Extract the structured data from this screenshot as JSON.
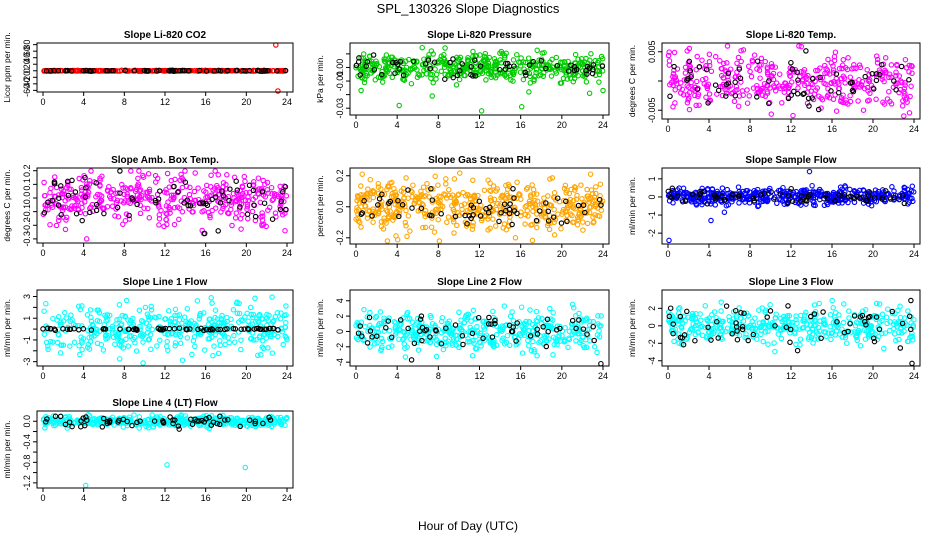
{
  "figure": {
    "title": "SPL_130326  Slope Diagnostics",
    "xlabel": "Hour of Day (UTC)"
  },
  "chart_data": [
    {
      "type": "scatter",
      "title": "Slope Li-820 CO2",
      "ylabel": "Licor ppm per min.",
      "xlim": [
        0,
        24
      ],
      "ylim": [
        -65,
        85
      ],
      "xticks": [
        0,
        4,
        8,
        12,
        16,
        20,
        24
      ],
      "yticks": [
        -60,
        -40,
        -20,
        0,
        20,
        40,
        60,
        80
      ],
      "ytick_labels": [
        "-60",
        "-40",
        "-20",
        "0",
        "20",
        "40",
        "60",
        "80"
      ],
      "series": [
        {
          "color": "#ff0000",
          "center": 0,
          "spread": 0.6,
          "count": 300,
          "outliers": [
            [
              22.9,
              79
            ],
            [
              23.1,
              -62
            ]
          ]
        },
        {
          "color": "#000000",
          "center": 0,
          "spread": 0.6,
          "count": 60,
          "outliers": []
        }
      ]
    },
    {
      "type": "scatter",
      "title": "Slope Li-820 Pressure",
      "ylabel": "kPa per min.",
      "xlim": [
        0,
        24
      ],
      "ylim": [
        -0.035,
        0.018
      ],
      "xticks": [
        0,
        4,
        8,
        12,
        16,
        20,
        24
      ],
      "yticks": [
        -0.03,
        -0.02,
        -0.01,
        0.0,
        0.01
      ],
      "ytick_labels": [
        "-0.03",
        "",
        "-0.01",
        "0.00",
        ""
      ],
      "series": [
        {
          "color": "#00cc00",
          "center": 0,
          "spread": 0.005,
          "count": 450,
          "outliers": [
            [
              0.5,
              -0.017
            ],
            [
              4.2,
              -0.028
            ],
            [
              7.4,
              -0.021
            ],
            [
              12.2,
              -0.032
            ],
            [
              16.1,
              -0.029
            ],
            [
              16.8,
              -0.018
            ],
            [
              22.7,
              -0.019
            ],
            [
              24.0,
              -0.017
            ]
          ]
        },
        {
          "color": "#000000",
          "center": 0,
          "spread": 0.004,
          "count": 60,
          "outliers": []
        }
      ]
    },
    {
      "type": "scatter",
      "title": "Slope Li-820 Temp.",
      "ylabel": "degrees C per min.",
      "xlim": [
        0,
        24
      ],
      "ylim": [
        -0.0065,
        0.0065
      ],
      "xticks": [
        0,
        4,
        8,
        12,
        16,
        20,
        24
      ],
      "yticks": [
        -0.005,
        0,
        0.005
      ],
      "ytick_labels": [
        "-0.005",
        "",
        "0.005"
      ],
      "series": [
        {
          "color": "#ff00ff",
          "center": 0,
          "spread": 0.0025,
          "count": 400,
          "outliers": []
        },
        {
          "color": "#000000",
          "center": 0,
          "spread": 0.002,
          "count": 60,
          "outliers": []
        }
      ]
    },
    {
      "type": "scatter",
      "title": "Slope Amb. Box Temp.",
      "ylabel": "degrees C per min.",
      "xlim": [
        0,
        24
      ],
      "ylim": [
        -0.33,
        0.22
      ],
      "xticks": [
        0,
        4,
        8,
        12,
        16,
        20,
        24
      ],
      "yticks": [
        -0.3,
        -0.2,
        -0.1,
        0.0,
        0.1,
        0.2
      ],
      "ytick_labels": [
        "-0.3",
        "-0.2",
        "-0.1",
        "0.0",
        "0.1",
        "0.2"
      ],
      "series": [
        {
          "color": "#ff00ff",
          "center": 0,
          "spread": 0.09,
          "count": 420,
          "outliers": [
            [
              4.3,
              -0.3
            ],
            [
              15.8,
              -0.26
            ],
            [
              23.8,
              -0.24
            ]
          ]
        },
        {
          "color": "#000000",
          "center": 0,
          "spread": 0.08,
          "count": 70,
          "outliers": [
            [
              15.9,
              -0.26
            ]
          ]
        }
      ]
    },
    {
      "type": "scatter",
      "title": "Slope Gas Stream RH",
      "ylabel": "percent per min.",
      "xlim": [
        0,
        24
      ],
      "ylim": [
        -0.24,
        0.25
      ],
      "xticks": [
        0,
        4,
        8,
        12,
        16,
        20,
        24
      ],
      "yticks": [
        -0.2,
        0.0,
        0.2
      ],
      "ytick_labels": [
        "-0.2",
        "0.0",
        "0.2"
      ],
      "series": [
        {
          "color": "#ffa500",
          "center": 0,
          "spread": 0.08,
          "count": 500,
          "outliers": [
            [
              0.6,
              0.21
            ],
            [
              22.8,
              0.21
            ],
            [
              15.5,
              -0.2
            ]
          ]
        },
        {
          "color": "#000000",
          "center": 0,
          "spread": 0.06,
          "count": 60,
          "outliers": []
        }
      ]
    },
    {
      "type": "scatter",
      "title": "Slope Sample Flow",
      "ylabel": "ml/min per min.",
      "xlim": [
        0,
        24
      ],
      "ylim": [
        -2.6,
        1.6
      ],
      "xticks": [
        0,
        4,
        8,
        12,
        16,
        20,
        24
      ],
      "yticks": [
        -2,
        -1,
        0,
        1
      ],
      "ytick_labels": [
        "-2",
        "-1",
        "0",
        "1"
      ],
      "series": [
        {
          "color": "#0000ff",
          "center": 0,
          "spread": 0.22,
          "count": 450,
          "outliers": [
            [
              0.1,
              -2.4
            ],
            [
              4.2,
              -1.3
            ],
            [
              5.5,
              -0.85
            ],
            [
              13.8,
              1.4
            ]
          ]
        },
        {
          "color": "#000000",
          "center": 0,
          "spread": 0.2,
          "count": 70,
          "outliers": []
        }
      ]
    },
    {
      "type": "scatter",
      "title": "Slope Line 1 Flow",
      "ylabel": "ml/min per min.",
      "xlim": [
        0,
        24
      ],
      "ylim": [
        -3.4,
        3.6
      ],
      "xticks": [
        0,
        4,
        8,
        12,
        16,
        20,
        24
      ],
      "yticks": [
        -3,
        -2,
        -1,
        0,
        1,
        2,
        3
      ],
      "ytick_labels": [
        "-3",
        "",
        "-1",
        "",
        "1",
        "",
        "3"
      ],
      "series": [
        {
          "color": "#00ffff",
          "center": 0,
          "spread": 1.1,
          "count": 400,
          "outliers": []
        },
        {
          "color": "#000000",
          "center": 0,
          "spread": 0.05,
          "count": 70,
          "outliers": []
        }
      ]
    },
    {
      "type": "scatter",
      "title": "Slope Line 2 Flow",
      "ylabel": "ml/min per min.",
      "xlim": [
        0,
        24
      ],
      "ylim": [
        -4.5,
        5.4
      ],
      "xticks": [
        0,
        4,
        8,
        12,
        16,
        20,
        24
      ],
      "yticks": [
        -4,
        -2,
        0,
        2,
        4
      ],
      "ytick_labels": [
        "-4",
        "-2",
        "0",
        "2",
        "4"
      ],
      "series": [
        {
          "color": "#00ffff",
          "center": 0,
          "spread": 1.3,
          "count": 420,
          "outliers": []
        },
        {
          "color": "#000000",
          "center": 0,
          "spread": 1.1,
          "count": 60,
          "outliers": [
            [
              23.8,
              -4.2
            ],
            [
              5.4,
              -3.7
            ]
          ]
        }
      ]
    },
    {
      "type": "scatter",
      "title": "Slope Line 3 Flow",
      "ylabel": "ml/min per min.",
      "xlim": [
        0,
        24
      ],
      "ylim": [
        -4.6,
        4.1
      ],
      "xticks": [
        0,
        4,
        8,
        12,
        16,
        20,
        24
      ],
      "yticks": [
        -4,
        -2,
        0,
        2
      ],
      "ytick_labels": [
        "-4",
        "-2",
        "0",
        "2"
      ],
      "series": [
        {
          "color": "#00ffff",
          "center": 0,
          "spread": 1.0,
          "count": 420,
          "outliers": []
        },
        {
          "color": "#000000",
          "center": 0,
          "spread": 1.2,
          "count": 60,
          "outliers": [
            [
              23.8,
              -4.3
            ],
            [
              23.7,
              2.9
            ]
          ]
        }
      ]
    },
    {
      "type": "scatter",
      "title": "Slope Line 4 (LT) Flow",
      "ylabel": "ml/min per min.",
      "xlim": [
        0,
        24
      ],
      "ylim": [
        -1.3,
        0.2
      ],
      "xticks": [
        0,
        4,
        8,
        12,
        16,
        20,
        24
      ],
      "yticks": [
        -1.2,
        -1.0,
        -0.8,
        -0.6,
        -0.4,
        -0.2,
        0.0
      ],
      "ytick_labels": [
        "-1.2",
        "",
        "-0.8",
        "",
        "-0.4",
        "",
        "0.0"
      ],
      "series": [
        {
          "color": "#00ffff",
          "center": 0,
          "spread": 0.05,
          "count": 400,
          "outliers": [
            [
              4.2,
              -1.25
            ],
            [
              12.2,
              -0.85
            ],
            [
              19.9,
              -0.9
            ]
          ]
        },
        {
          "color": "#000000",
          "center": 0,
          "spread": 0.06,
          "count": 60,
          "outliers": []
        }
      ]
    }
  ]
}
